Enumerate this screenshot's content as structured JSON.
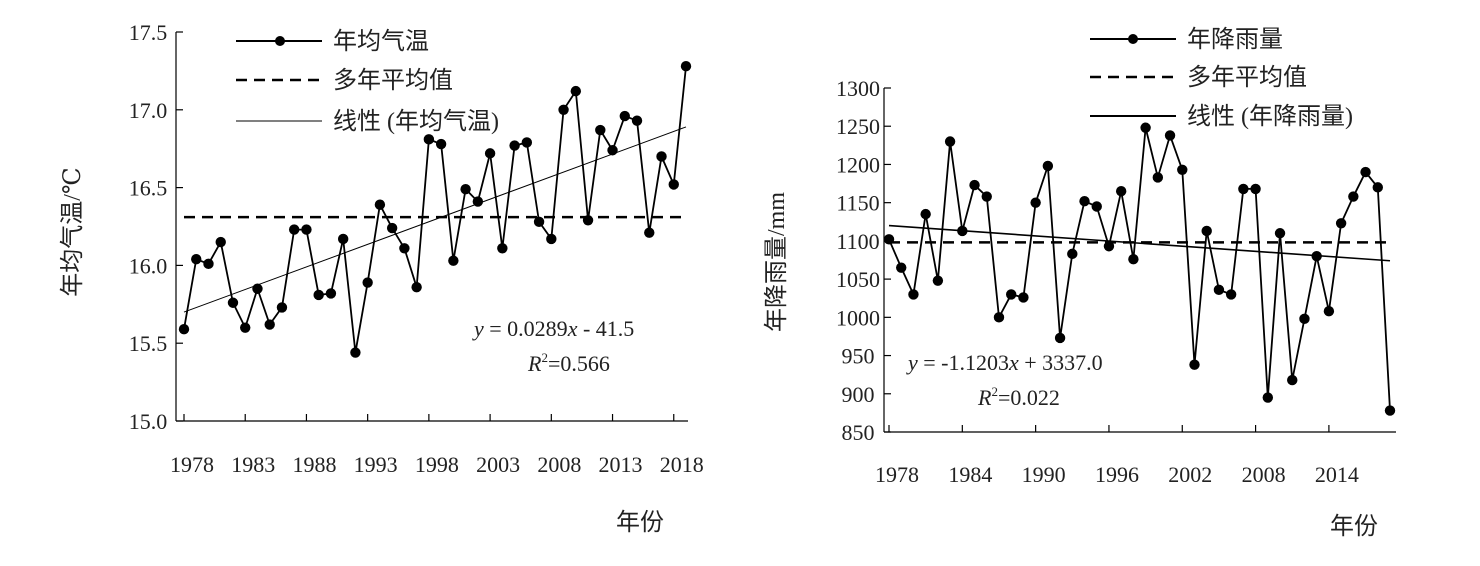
{
  "chart_data": [
    {
      "type": "line",
      "xlabel": "年份",
      "ylabel": "年均气温/℃",
      "ylim": [
        15.0,
        17.5
      ],
      "yticks": [
        "15.0",
        "15.5",
        "16.0",
        "16.5",
        "17.0",
        "17.5"
      ],
      "xticks": [
        "1978",
        "1983",
        "1988",
        "1993",
        "1998",
        "2003",
        "2008",
        "2013",
        "2018"
      ],
      "xlim": [
        1978,
        2019
      ],
      "legend_position": "top",
      "grid": false,
      "legend": [
        "年均气温",
        "多年平均值",
        "线性 (年均气温)"
      ],
      "equation": {
        "y_var": "y",
        "eq_text": " = 0.0289",
        "x_var": "x",
        "tail": " - 41.5"
      },
      "r2": {
        "r": "R",
        "sup": "2",
        "value": "=0.566"
      },
      "x": [
        1978,
        1979,
        1980,
        1981,
        1982,
        1983,
        1984,
        1985,
        1986,
        1987,
        1988,
        1989,
        1990,
        1991,
        1992,
        1993,
        1994,
        1995,
        1996,
        1997,
        1998,
        1999,
        2000,
        2001,
        2002,
        2003,
        2004,
        2005,
        2006,
        2007,
        2008,
        2009,
        2010,
        2011,
        2012,
        2013,
        2014,
        2015,
        2016,
        2017,
        2018,
        2019
      ],
      "series": [
        {
          "name": "年均气温",
          "values": [
            15.59,
            16.04,
            16.01,
            16.15,
            15.76,
            15.6,
            15.85,
            15.62,
            15.73,
            16.23,
            16.23,
            15.81,
            15.82,
            16.17,
            15.44,
            15.89,
            16.39,
            16.24,
            16.11,
            15.86,
            16.81,
            16.78,
            16.03,
            16.49,
            16.41,
            16.72,
            16.11,
            16.77,
            16.79,
            16.28,
            16.17,
            17.0,
            17.12,
            16.29,
            16.87,
            16.74,
            16.96,
            16.93,
            16.21,
            16.7,
            16.52,
            17.28
          ]
        }
      ],
      "mean": 16.31,
      "trend": [
        15.7,
        16.89
      ]
    },
    {
      "type": "line",
      "xlabel": "年份",
      "ylabel": "年降雨量/mm",
      "ylim": [
        850,
        1300
      ],
      "yticks": [
        "850",
        "900",
        "950",
        "1000",
        "1050",
        "1100",
        "1150",
        "1200",
        "1250",
        "1300"
      ],
      "xticks": [
        "1978",
        "1984",
        "1990",
        "1996",
        "2002",
        "2008",
        "2014"
      ],
      "xlim": [
        1978,
        2019
      ],
      "legend_position": "top",
      "grid": false,
      "legend": [
        "年降雨量",
        "多年平均值",
        "线性 (年降雨量)"
      ],
      "equation": {
        "y_var": "y",
        "eq_text": " = -1.1203",
        "x_var": "x",
        "tail": " + 3337.0"
      },
      "r2": {
        "r": "R",
        "sup": "2",
        "value": "=0.022"
      },
      "x": [
        1978,
        1979,
        1980,
        1981,
        1982,
        1983,
        1984,
        1985,
        1986,
        1987,
        1988,
        1989,
        1990,
        1991,
        1992,
        1993,
        1994,
        1995,
        1996,
        1997,
        1998,
        1999,
        2000,
        2001,
        2002,
        2003,
        2004,
        2005,
        2006,
        2007,
        2008,
        2009,
        2010,
        2011,
        2012,
        2013,
        2014,
        2015,
        2016,
        2017,
        2018,
        2019
      ],
      "series": [
        {
          "name": "年降雨量",
          "values": [
            1102,
            1065,
            1030,
            1135,
            1048,
            1230,
            1113,
            1173,
            1158,
            1000,
            1030,
            1026,
            1150,
            1198,
            973,
            1083,
            1152,
            1145,
            1093,
            1165,
            1076,
            1248,
            1183,
            1238,
            1193,
            938,
            1113,
            1036,
            1030,
            1168,
            1168,
            895,
            1110,
            918,
            998,
            1080,
            1008,
            1123,
            1158,
            1190,
            1170,
            878
          ]
        }
      ],
      "mean": 1098,
      "trend": [
        1120,
        1074
      ]
    }
  ]
}
